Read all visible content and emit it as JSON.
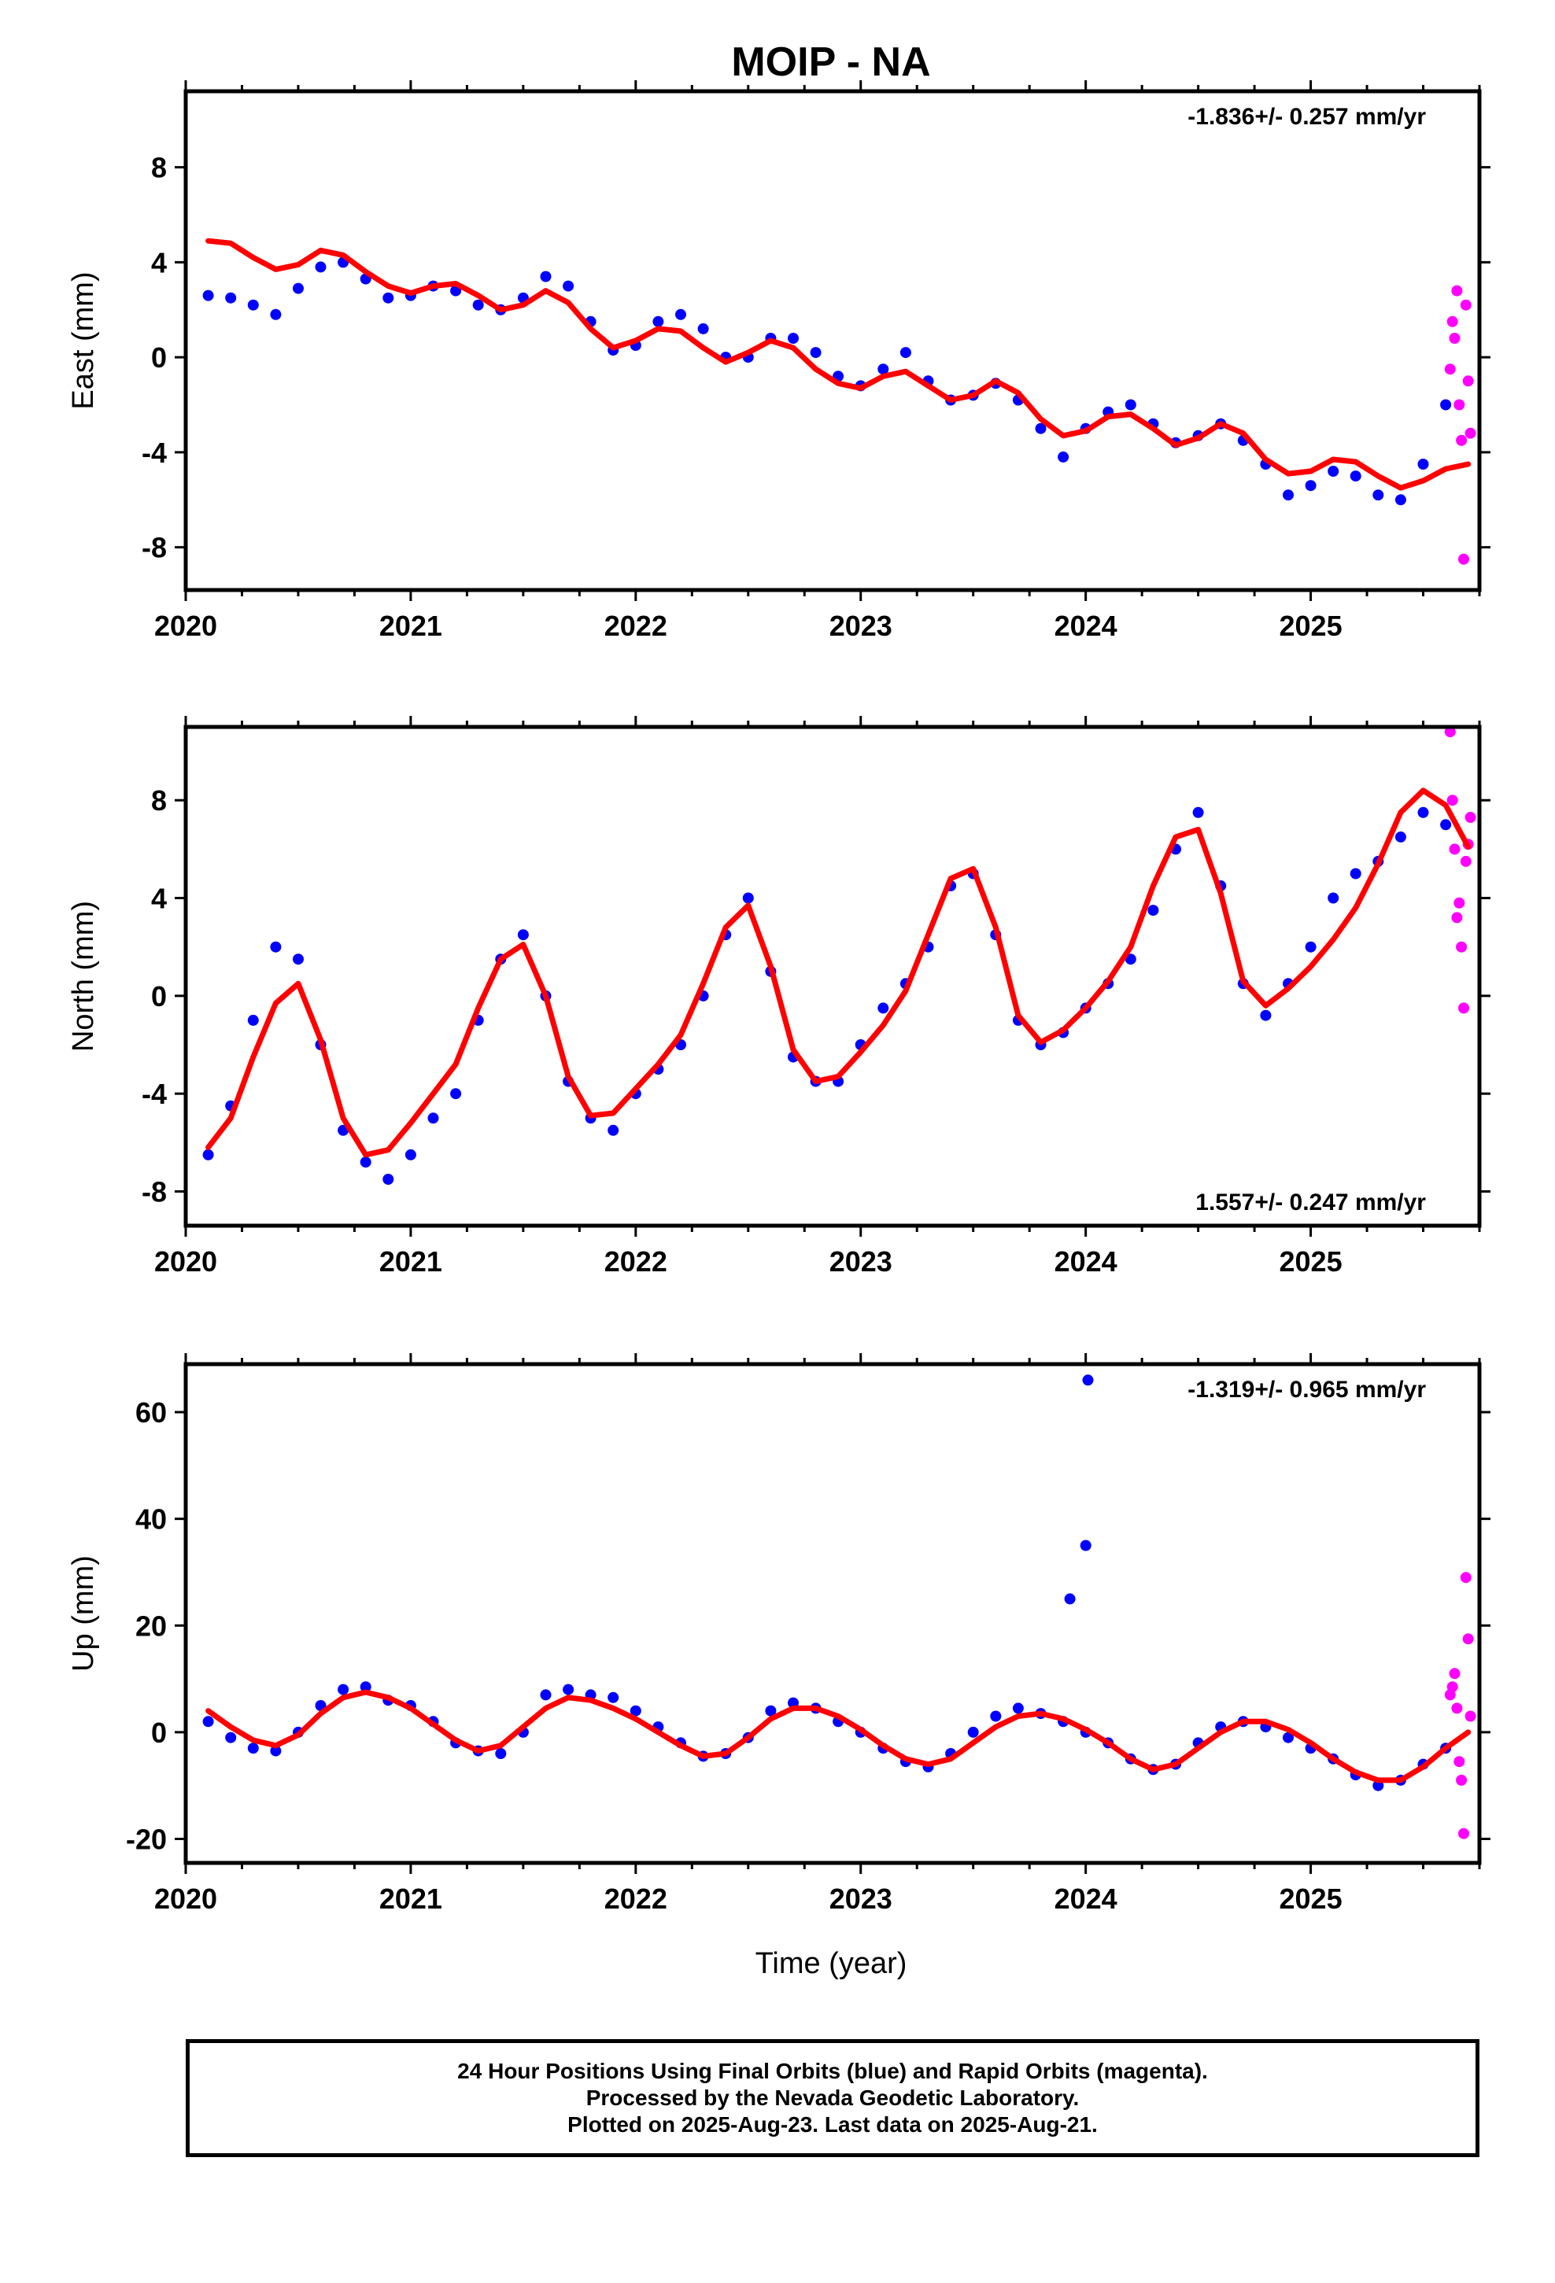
{
  "chart_data": {
    "title": "MOIP - NA",
    "type": "scatter",
    "xlabel": "Time (year)",
    "x_ticks": [
      2020,
      2021,
      2022,
      2023,
      2024,
      2025
    ],
    "xlim": [
      2020.0,
      2025.75
    ],
    "colors": {
      "final": "#0000ff",
      "rapid": "#ff00ff",
      "model": "#ff0000"
    },
    "panels": [
      {
        "name": "East",
        "ylabel": "East (mm)",
        "rate": "-1.836+/- 0.257 mm/yr",
        "rate_position": "top-right",
        "ylim": [
          -9.8,
          11.2
        ],
        "y_ticks": [
          8,
          4,
          0,
          -4,
          -8
        ],
        "series": [
          {
            "name": "Final Orbits",
            "color": "#0000ff",
            "x": [
              2020.1,
              2020.2,
              2020.3,
              2020.4,
              2020.5,
              2020.6,
              2020.7,
              2020.8,
              2020.9,
              2021.0,
              2021.1,
              2021.2,
              2021.3,
              2021.4,
              2021.5,
              2021.6,
              2021.7,
              2021.8,
              2021.9,
              2022.0,
              2022.1,
              2022.2,
              2022.3,
              2022.4,
              2022.5,
              2022.6,
              2022.7,
              2022.8,
              2022.9,
              2023.0,
              2023.1,
              2023.2,
              2023.3,
              2023.4,
              2023.5,
              2023.6,
              2023.7,
              2023.8,
              2023.9,
              2024.0,
              2024.1,
              2024.2,
              2024.3,
              2024.4,
              2024.5,
              2024.6,
              2024.7,
              2024.8,
              2024.9,
              2025.0,
              2025.1,
              2025.2,
              2025.3,
              2025.4,
              2025.5,
              2025.6
            ],
            "y": [
              2.6,
              2.5,
              2.2,
              1.8,
              2.9,
              3.8,
              4.0,
              3.3,
              2.5,
              2.6,
              3.0,
              2.8,
              2.2,
              2.0,
              2.5,
              3.4,
              3.0,
              1.5,
              0.3,
              0.5,
              1.5,
              1.8,
              1.2,
              0.0,
              0.0,
              0.8,
              0.8,
              0.2,
              -0.8,
              -1.2,
              -0.5,
              0.2,
              -1.0,
              -1.8,
              -1.6,
              -1.1,
              -1.8,
              -3.0,
              -4.2,
              -3.0,
              -2.3,
              -2.0,
              -2.8,
              -3.6,
              -3.3,
              -2.8,
              -3.5,
              -4.5,
              -5.8,
              -5.4,
              -4.8,
              -5.0,
              -5.8,
              -6.0,
              -4.5,
              -2.0
            ]
          },
          {
            "name": "Rapid Orbits",
            "color": "#ff00ff",
            "x": [
              2025.62,
              2025.63,
              2025.64,
              2025.65,
              2025.66,
              2025.67,
              2025.68,
              2025.69,
              2025.7,
              2025.71
            ],
            "y": [
              -0.5,
              1.5,
              0.8,
              2.8,
              -2.0,
              -3.5,
              -8.5,
              2.2,
              -1.0,
              -3.2
            ]
          },
          {
            "name": "Model",
            "color": "#ff0000",
            "x": [
              2020.1,
              2020.2,
              2020.3,
              2020.4,
              2020.5,
              2020.6,
              2020.7,
              2020.8,
              2020.9,
              2021.0,
              2021.1,
              2021.2,
              2021.3,
              2021.4,
              2021.5,
              2021.6,
              2021.7,
              2021.8,
              2021.9,
              2022.0,
              2022.1,
              2022.2,
              2022.3,
              2022.4,
              2022.5,
              2022.6,
              2022.7,
              2022.8,
              2022.9,
              2023.0,
              2023.1,
              2023.2,
              2023.3,
              2023.4,
              2023.5,
              2023.6,
              2023.7,
              2023.8,
              2023.9,
              2024.0,
              2024.1,
              2024.2,
              2024.3,
              2024.4,
              2024.5,
              2024.6,
              2024.7,
              2024.8,
              2024.9,
              2025.0,
              2025.1,
              2025.2,
              2025.3,
              2025.4,
              2025.5,
              2025.6,
              2025.7
            ],
            "y": [
              4.9,
              4.8,
              4.2,
              3.7,
              3.9,
              4.5,
              4.3,
              3.6,
              3.0,
              2.7,
              3.0,
              3.1,
              2.6,
              2.0,
              2.2,
              2.8,
              2.3,
              1.2,
              0.4,
              0.7,
              1.2,
              1.1,
              0.4,
              -0.2,
              0.2,
              0.7,
              0.4,
              -0.5,
              -1.1,
              -1.3,
              -0.8,
              -0.6,
              -1.2,
              -1.8,
              -1.6,
              -1.0,
              -1.5,
              -2.6,
              -3.3,
              -3.1,
              -2.5,
              -2.4,
              -3.0,
              -3.7,
              -3.4,
              -2.8,
              -3.2,
              -4.3,
              -4.9,
              -4.8,
              -4.3,
              -4.4,
              -5.0,
              -5.5,
              -5.2,
              -4.7,
              -4.5
            ]
          }
        ]
      },
      {
        "name": "North",
        "ylabel": "North (mm)",
        "rate": "1.557+/- 0.247 mm/yr",
        "rate_position": "bottom-right",
        "ylim": [
          -9.4,
          11.0
        ],
        "y_ticks": [
          8,
          4,
          0,
          -4,
          -8
        ],
        "series": [
          {
            "name": "Final Orbits",
            "color": "#0000ff",
            "x": [
              2020.1,
              2020.2,
              2020.3,
              2020.4,
              2020.5,
              2020.6,
              2020.7,
              2020.8,
              2020.9,
              2021.0,
              2021.1,
              2021.2,
              2021.3,
              2021.4,
              2021.5,
              2021.6,
              2021.7,
              2021.8,
              2021.9,
              2022.0,
              2022.1,
              2022.2,
              2022.3,
              2022.4,
              2022.5,
              2022.6,
              2022.7,
              2022.8,
              2022.9,
              2023.0,
              2023.1,
              2023.2,
              2023.3,
              2023.4,
              2023.5,
              2023.6,
              2023.7,
              2023.8,
              2023.9,
              2024.0,
              2024.1,
              2024.2,
              2024.3,
              2024.4,
              2024.5,
              2024.6,
              2024.7,
              2024.8,
              2024.9,
              2025.0,
              2025.1,
              2025.2,
              2025.3,
              2025.4,
              2025.5,
              2025.6
            ],
            "y": [
              -6.5,
              -4.5,
              -1.0,
              2.0,
              1.5,
              -2.0,
              -5.5,
              -6.8,
              -7.5,
              -6.5,
              -5.0,
              -4.0,
              -1.0,
              1.5,
              2.5,
              0.0,
              -3.5,
              -5.0,
              -5.5,
              -4.0,
              -3.0,
              -2.0,
              0.0,
              2.5,
              4.0,
              1.0,
              -2.5,
              -3.5,
              -3.5,
              -2.0,
              -0.5,
              0.5,
              2.0,
              4.5,
              5.0,
              2.5,
              -1.0,
              -2.0,
              -1.5,
              -0.5,
              0.5,
              1.5,
              3.5,
              6.0,
              7.5,
              4.5,
              0.5,
              -0.8,
              0.5,
              2.0,
              4.0,
              5.0,
              5.5,
              6.5,
              7.5,
              7.0
            ]
          },
          {
            "name": "Rapid Orbits",
            "color": "#ff00ff",
            "x": [
              2025.62,
              2025.63,
              2025.64,
              2025.65,
              2025.66,
              2025.67,
              2025.68,
              2025.69,
              2025.7,
              2025.71
            ],
            "y": [
              10.8,
              8.0,
              6.0,
              3.2,
              3.8,
              2.0,
              -0.5,
              5.5,
              6.2,
              7.3
            ]
          },
          {
            "name": "Model",
            "color": "#ff0000",
            "x": [
              2020.1,
              2020.2,
              2020.3,
              2020.4,
              2020.5,
              2020.6,
              2020.7,
              2020.8,
              2020.9,
              2021.0,
              2021.1,
              2021.2,
              2021.3,
              2021.4,
              2021.5,
              2021.6,
              2021.7,
              2021.8,
              2021.9,
              2022.0,
              2022.1,
              2022.2,
              2022.3,
              2022.4,
              2022.5,
              2022.6,
              2022.7,
              2022.8,
              2022.9,
              2023.0,
              2023.1,
              2023.2,
              2023.3,
              2023.4,
              2023.5,
              2023.6,
              2023.7,
              2023.8,
              2023.9,
              2024.0,
              2024.1,
              2024.2,
              2024.3,
              2024.4,
              2024.5,
              2024.6,
              2024.7,
              2024.8,
              2024.9,
              2025.0,
              2025.1,
              2025.2,
              2025.3,
              2025.4,
              2025.5,
              2025.6,
              2025.7
            ],
            "y": [
              -6.2,
              -5.0,
              -2.5,
              -0.3,
              0.5,
              -1.8,
              -5.0,
              -6.5,
              -6.3,
              -5.2,
              -4.0,
              -2.8,
              -0.5,
              1.5,
              2.1,
              0.0,
              -3.3,
              -4.9,
              -4.8,
              -3.8,
              -2.8,
              -1.6,
              0.5,
              2.8,
              3.7,
              1.2,
              -2.2,
              -3.5,
              -3.3,
              -2.3,
              -1.2,
              0.2,
              2.5,
              4.8,
              5.2,
              2.8,
              -0.8,
              -1.9,
              -1.4,
              -0.5,
              0.6,
              2.0,
              4.5,
              6.5,
              6.8,
              4.2,
              0.6,
              -0.4,
              0.3,
              1.2,
              2.3,
              3.6,
              5.4,
              7.5,
              8.4,
              7.8,
              6.1
            ]
          }
        ]
      },
      {
        "name": "Up",
        "ylabel": "Up (mm)",
        "rate": "-1.319+/- 0.965 mm/yr",
        "rate_position": "top-right",
        "ylim": [
          -24.5,
          69
        ],
        "y_ticks": [
          60,
          40,
          20,
          0,
          -20
        ],
        "series": [
          {
            "name": "Final Orbits",
            "color": "#0000ff",
            "x": [
              2020.1,
              2020.2,
              2020.3,
              2020.4,
              2020.5,
              2020.6,
              2020.7,
              2020.8,
              2020.9,
              2021.0,
              2021.1,
              2021.2,
              2021.3,
              2021.4,
              2021.5,
              2021.6,
              2021.7,
              2021.8,
              2021.9,
              2022.0,
              2022.1,
              2022.2,
              2022.3,
              2022.4,
              2022.5,
              2022.6,
              2022.7,
              2022.8,
              2022.9,
              2023.0,
              2023.1,
              2023.2,
              2023.3,
              2023.4,
              2023.5,
              2023.6,
              2023.7,
              2023.8,
              2023.9,
              2024.0,
              2024.1,
              2024.2,
              2024.3,
              2024.4,
              2024.5,
              2024.6,
              2024.7,
              2024.8,
              2024.9,
              2025.0,
              2025.1,
              2025.2,
              2025.3,
              2025.4,
              2025.5,
              2025.6,
              2023.93,
              2024.0,
              2024.01
            ],
            "y": [
              2.0,
              -1.0,
              -3.0,
              -3.5,
              0.0,
              5.0,
              8.0,
              8.5,
              6.0,
              5.0,
              2.0,
              -2.0,
              -3.5,
              -4.0,
              0.0,
              7.0,
              8.0,
              7.0,
              6.5,
              4.0,
              1.0,
              -2.0,
              -4.5,
              -4.0,
              -1.0,
              4.0,
              5.5,
              4.5,
              2.0,
              0.0,
              -3.0,
              -5.5,
              -6.5,
              -4.0,
              0.0,
              3.0,
              4.5,
              3.5,
              2.0,
              0.0,
              -2.0,
              -5.0,
              -7.0,
              -6.0,
              -2.0,
              1.0,
              2.0,
              1.0,
              -1.0,
              -3.0,
              -5.0,
              -8.0,
              -10.0,
              -9.0,
              -6.0,
              -3.0,
              25.0,
              35.0,
              66.0
            ]
          },
          {
            "name": "Rapid Orbits",
            "color": "#ff00ff",
            "x": [
              2025.62,
              2025.63,
              2025.64,
              2025.65,
              2025.66,
              2025.67,
              2025.68,
              2025.69,
              2025.7,
              2025.71
            ],
            "y": [
              7.0,
              8.5,
              11.0,
              4.5,
              -5.5,
              -9.0,
              -19.0,
              29.0,
              17.5,
              3.0
            ]
          },
          {
            "name": "Model",
            "color": "#ff0000",
            "x": [
              2020.1,
              2020.2,
              2020.3,
              2020.4,
              2020.5,
              2020.6,
              2020.7,
              2020.8,
              2020.9,
              2021.0,
              2021.1,
              2021.2,
              2021.3,
              2021.4,
              2021.5,
              2021.6,
              2021.7,
              2021.8,
              2021.9,
              2022.0,
              2022.1,
              2022.2,
              2022.3,
              2022.4,
              2022.5,
              2022.6,
              2022.7,
              2022.8,
              2022.9,
              2023.0,
              2023.1,
              2023.2,
              2023.3,
              2023.4,
              2023.5,
              2023.6,
              2023.7,
              2023.8,
              2023.9,
              2024.0,
              2024.1,
              2024.2,
              2024.3,
              2024.4,
              2024.5,
              2024.6,
              2024.7,
              2024.8,
              2024.9,
              2025.0,
              2025.1,
              2025.2,
              2025.3,
              2025.4,
              2025.5,
              2025.6,
              2025.7
            ],
            "y": [
              4.0,
              1.0,
              -1.5,
              -2.5,
              -0.5,
              3.5,
              6.5,
              7.5,
              6.5,
              4.5,
              1.5,
              -1.5,
              -3.5,
              -2.5,
              1.0,
              4.5,
              6.5,
              6.0,
              4.5,
              2.5,
              0.0,
              -2.5,
              -4.5,
              -4.0,
              -1.0,
              2.5,
              4.5,
              4.5,
              3.0,
              0.5,
              -2.5,
              -5.0,
              -6.0,
              -5.0,
              -2.0,
              1.0,
              3.0,
              3.5,
              2.5,
              0.5,
              -2.0,
              -5.0,
              -7.0,
              -6.0,
              -3.0,
              0.0,
              2.0,
              2.0,
              0.5,
              -2.0,
              -5.0,
              -7.5,
              -9.0,
              -9.0,
              -6.5,
              -3.0,
              0.0
            ]
          }
        ]
      }
    ]
  },
  "footer": {
    "line1": "24 Hour Positions Using Final Orbits (blue) and Rapid Orbits (magenta).",
    "line2": "Processed by the Nevada Geodetic Laboratory.",
    "line3": "Plotted on 2025-Aug-23. Last data on 2025-Aug-21."
  }
}
